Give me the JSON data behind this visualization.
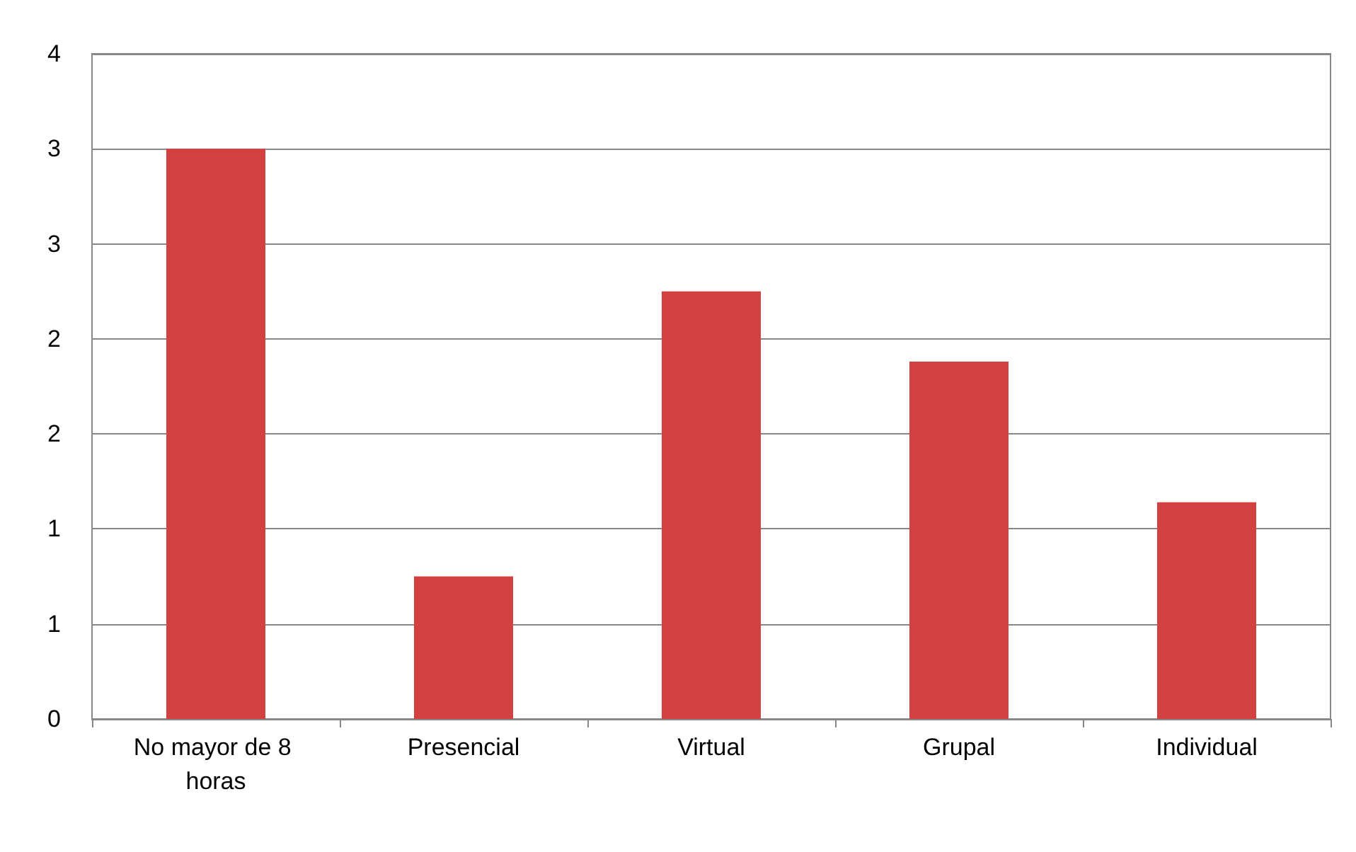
{
  "chart_data": {
    "type": "bar",
    "categories": [
      "No mayor de 8 horas",
      "Presencial",
      "Virtual",
      "Grupal",
      "Individual"
    ],
    "values": [
      3,
      0.75,
      2.25,
      1.88,
      1.14
    ],
    "color": "#d2403f",
    "ylim": [
      0,
      3.5
    ],
    "yticks": [
      0,
      {
        "value": 0.5,
        "label": "1"
      },
      1,
      {
        "value": 1.5,
        "label": "2"
      },
      2,
      {
        "value": 2.5,
        "label": "3"
      },
      3,
      {
        "value": 3.5,
        "label": "4"
      }
    ],
    "grid": "y"
  }
}
